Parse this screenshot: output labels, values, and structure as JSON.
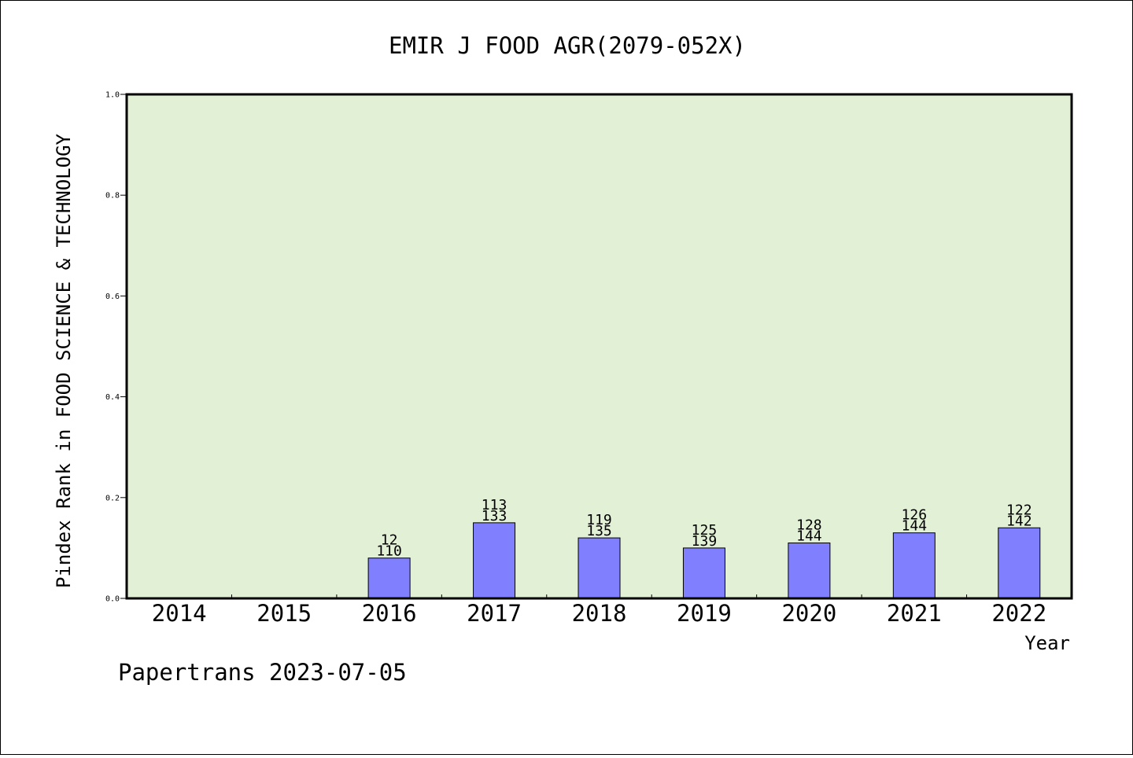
{
  "chart_data": {
    "type": "bar",
    "title": "EMIR J FOOD AGR(2079-052X)",
    "xlabel": "Year",
    "ylabel": "Pindex Rank in FOOD SCIENCE & TECHNOLOGY",
    "categories": [
      "2014",
      "2015",
      "2016",
      "2017",
      "2018",
      "2019",
      "2020",
      "2021",
      "2022"
    ],
    "values": [
      null,
      null,
      0.08,
      0.15,
      0.12,
      0.1,
      0.11,
      0.13,
      0.14
    ],
    "bar_labels_top": [
      "",
      "",
      "12",
      "113",
      "119",
      "125",
      "128",
      "126",
      "122"
    ],
    "bar_labels_bottom": [
      "",
      "",
      "110",
      "133",
      "135",
      "139",
      "144",
      "144",
      "142"
    ],
    "ylim": [
      0.0,
      1.0
    ],
    "yticks": [
      "0.0",
      "0.2",
      "0.4",
      "0.6",
      "0.8",
      "1.0"
    ],
    "grid": false,
    "legend": "none",
    "colors": {
      "plot_background": "#e2f0d6",
      "bar_fill": "#8080ff",
      "bar_stroke": "#000000"
    }
  },
  "footer": {
    "text": "Papertrans 2023-07-05"
  }
}
